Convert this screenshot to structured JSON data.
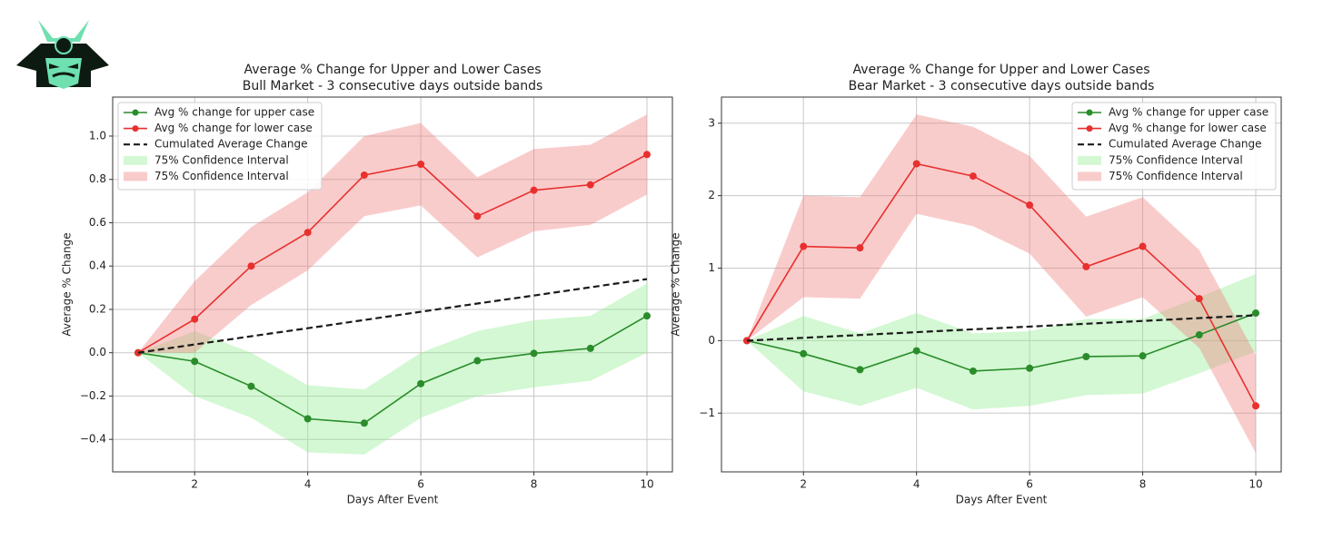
{
  "chart_data": [
    {
      "type": "line",
      "title": "Average % Change for Upper and Lower Cases",
      "subtitle": "Bull Market - 3 consecutive days outside bands",
      "x_label": "Days After Event",
      "y_label": "Average % Change",
      "x": [
        1,
        2,
        3,
        4,
        5,
        6,
        7,
        8,
        9,
        10
      ],
      "xlim": [
        0.55,
        10.45
      ],
      "xticks": [
        2,
        4,
        6,
        8,
        10
      ],
      "ylim": [
        -0.55,
        1.18
      ],
      "yticks": [
        {
          "value": -0.4,
          "label": "−0.4"
        },
        {
          "value": -0.2,
          "label": "−0.2"
        },
        {
          "value": 0,
          "label": "0.0"
        },
        0.2,
        0.4,
        0.6,
        0.8,
        {
          "value": 1,
          "label": "1.0"
        }
      ],
      "grid": true,
      "legend": "upper left",
      "series": [
        {
          "name": "Avg % change for upper case",
          "color": "#2a8c2a",
          "marker": true,
          "values": [
            0,
            -0.04,
            -0.155,
            -0.305,
            -0.325,
            -0.143,
            -0.037,
            -0.003,
            0.02,
            0.17
          ]
        },
        {
          "name": "Avg % change for lower case",
          "color": "#e8302e",
          "marker": true,
          "values": [
            0,
            0.155,
            0.4,
            0.555,
            0.82,
            0.87,
            0.63,
            0.75,
            0.775,
            0.915
          ]
        },
        {
          "name": "Cumulated Average Change",
          "color": "#1a1a1a",
          "dashed": true,
          "values": [
            0,
            0.038,
            0.076,
            0.113,
            0.151,
            0.189,
            0.227,
            0.264,
            0.302,
            0.34
          ]
        }
      ],
      "bands": [
        {
          "name": "75% Confidence Interval",
          "color": "#90ee90",
          "lower": [
            0,
            -0.2,
            -0.3,
            -0.46,
            -0.47,
            -0.3,
            -0.2,
            -0.16,
            -0.13,
            0.0
          ],
          "upper": [
            0,
            0.1,
            0.0,
            -0.15,
            -0.17,
            0.0,
            0.1,
            0.15,
            0.17,
            0.32
          ]
        },
        {
          "name": "75% Confidence Interval",
          "color": "#f08080",
          "lower": [
            0,
            0.0,
            0.22,
            0.38,
            0.63,
            0.68,
            0.44,
            0.56,
            0.59,
            0.73
          ],
          "upper": [
            0,
            0.33,
            0.58,
            0.74,
            1.0,
            1.06,
            0.81,
            0.94,
            0.96,
            1.1
          ]
        }
      ]
    },
    {
      "type": "line",
      "title": "Average % Change for Upper and Lower Cases",
      "subtitle": "Bear Market - 3 consecutive days outside bands",
      "x_label": "Days After Event",
      "y_label": "Average % Change",
      "x": [
        1,
        2,
        3,
        4,
        5,
        6,
        7,
        8,
        9,
        10
      ],
      "xlim": [
        0.55,
        10.45
      ],
      "xticks": [
        2,
        4,
        6,
        8,
        10
      ],
      "ylim": [
        -1.81,
        3.36
      ],
      "yticks": [
        {
          "value": -1,
          "label": "−1"
        },
        0,
        1,
        2,
        3
      ],
      "grid": true,
      "legend": "upper right",
      "series": [
        {
          "name": "Avg % change for upper case",
          "color": "#2a8c2a",
          "marker": true,
          "values": [
            0,
            -0.18,
            -0.4,
            -0.14,
            -0.42,
            -0.38,
            -0.22,
            -0.21,
            0.08,
            0.38
          ]
        },
        {
          "name": "Avg % change for lower case",
          "color": "#e8302e",
          "marker": true,
          "values": [
            0,
            1.3,
            1.28,
            2.44,
            2.27,
            1.87,
            1.02,
            1.3,
            0.58,
            -0.9
          ]
        },
        {
          "name": "Cumulated Average Change",
          "color": "#1a1a1a",
          "dashed": true,
          "values": [
            0,
            0.039,
            0.078,
            0.117,
            0.156,
            0.194,
            0.233,
            0.272,
            0.311,
            0.35
          ]
        }
      ],
      "bands": [
        {
          "name": "75% Confidence Interval",
          "color": "#90ee90",
          "lower": [
            0,
            -0.7,
            -0.9,
            -0.65,
            -0.95,
            -0.9,
            -0.75,
            -0.73,
            -0.45,
            -0.15
          ],
          "upper": [
            0,
            0.34,
            0.1,
            0.38,
            0.1,
            0.13,
            0.3,
            0.3,
            0.6,
            0.92
          ]
        },
        {
          "name": "75% Confidence Interval",
          "color": "#f08080",
          "lower": [
            0,
            0.6,
            0.58,
            1.75,
            1.58,
            1.2,
            0.33,
            0.6,
            -0.1,
            -1.55
          ],
          "upper": [
            0,
            2.0,
            1.98,
            3.12,
            2.95,
            2.55,
            1.71,
            1.98,
            1.25,
            -0.2
          ]
        }
      ]
    }
  ]
}
